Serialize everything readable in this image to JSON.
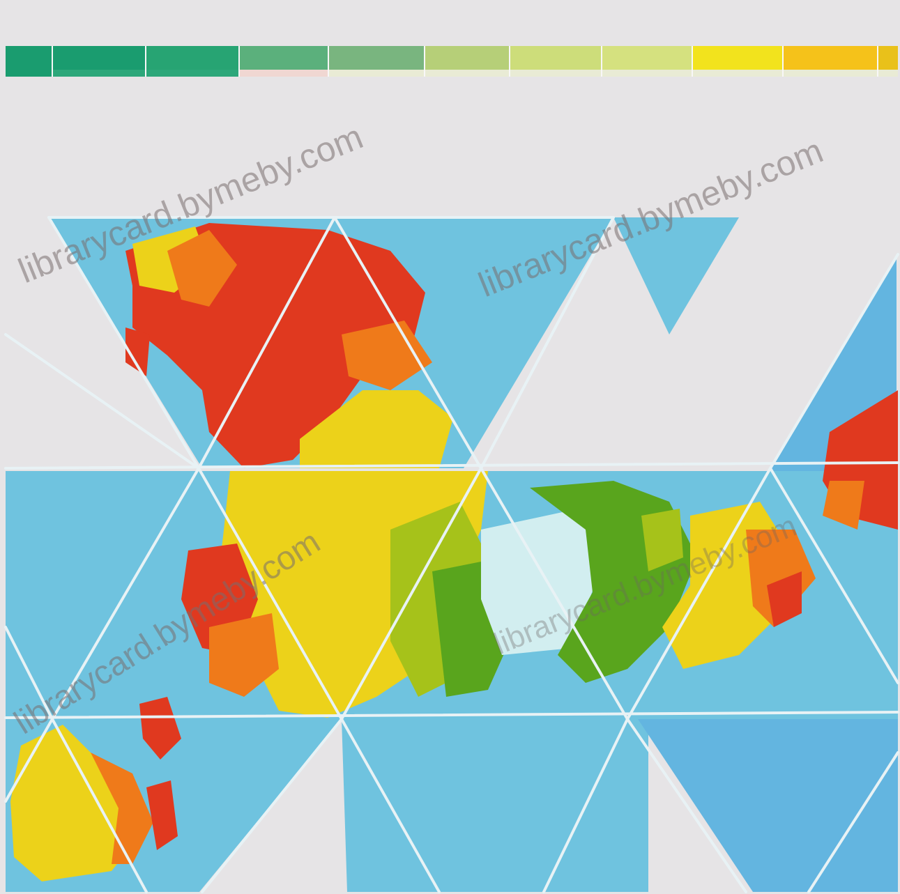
{
  "map": {
    "projection_kind": "icosahedral-triangles",
    "colors": {
      "background": "#e6e4e6",
      "ocean": "#6fc3df",
      "ocean_deep": "#63b5e0",
      "gridline": "#e8f2f5",
      "desert_red": "#e0391f",
      "desert_orange": "#ef7a1a",
      "dry_yellow": "#ecd21a",
      "savanna_green": "#a6c21a",
      "forest_green": "#59a51d",
      "ice": "#d2eef0"
    },
    "legend": {
      "label": "colour scale (unlabeled)",
      "swatches": [
        {
          "top": "#1a9c6f",
          "bottom": "#1a9c6f"
        },
        {
          "top": "#1a9c6f",
          "bottom": "#2da77a"
        },
        {
          "top": "#27a473",
          "bottom": "#2da77a"
        },
        {
          "top": "#5bb07c",
          "bottom": "#f0d7d2"
        },
        {
          "top": "#79b57f",
          "bottom": "#e9ebd5"
        },
        {
          "top": "#b6cf78",
          "bottom": "#e9ebd5"
        },
        {
          "top": "#cddd7a",
          "bottom": "#e9ebd5"
        },
        {
          "top": "#d5e17f",
          "bottom": "#e9ebd5"
        },
        {
          "top": "#f2e31d",
          "bottom": "#e9ebd5"
        },
        {
          "top": "#f5c21a",
          "bottom": "#e9ebd5"
        },
        {
          "top": "#e9c11a",
          "bottom": "#e9ebd5"
        }
      ]
    }
  },
  "watermark": {
    "text": "librarycard.bymeby.com"
  }
}
